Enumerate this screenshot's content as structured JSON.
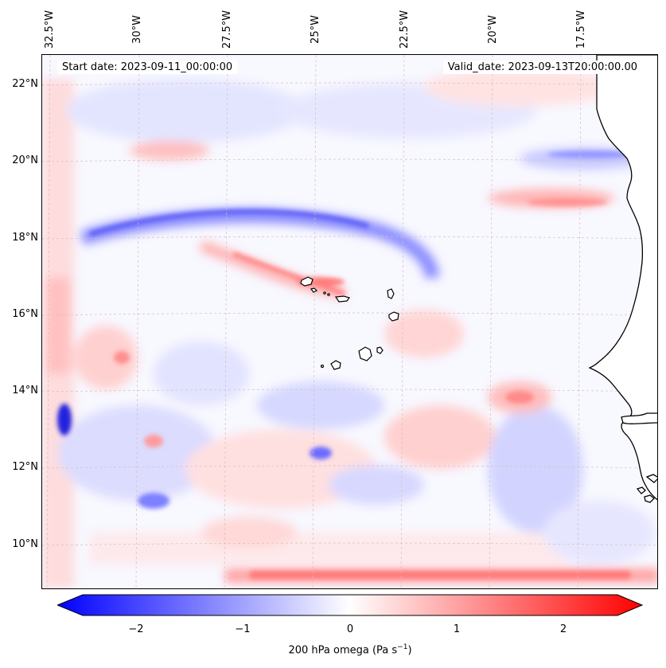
{
  "header": {
    "start_date": "Start date: 2023-09-11_00:00:00",
    "valid_date": "Valid_date: 2023-09-13T20:00:00.00"
  },
  "longitude_labels": [
    "32.5°W",
    "30°W",
    "27.5°W",
    "25°W",
    "22.5°W",
    "20°W",
    "17.5°W"
  ],
  "latitude_labels": [
    "22°N",
    "20°N",
    "18°N",
    "16°N",
    "14°N",
    "12°N",
    "10°N"
  ],
  "colorbar": {
    "ticks": [
      "−2",
      "−1",
      "0",
      "1",
      "2"
    ],
    "label_text": "200 hPa omega (Pa s",
    "label_sup": "−1",
    "label_close": ")",
    "min_color": "#0000ff",
    "mid_color": "#ffffff",
    "max_color": "#ff0000"
  },
  "map": {
    "field": "200 hPa omega",
    "projection_grid": "dashed lat/lon gridlines",
    "land_color": "#ffffff",
    "coastline_color": "#000000"
  }
}
